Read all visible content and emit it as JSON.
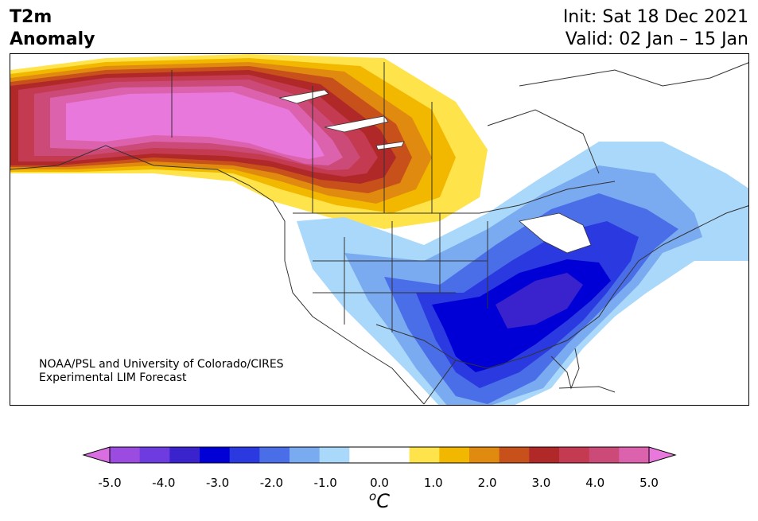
{
  "header": {
    "title_line1": "T2m",
    "title_line2": "Anomaly",
    "init": "Init: Sat 18 Dec 2021",
    "valid": "Valid: 02 Jan – 15 Jan"
  },
  "credit": {
    "line1": "NOAA/PSL and University of Colorado/CIRES",
    "line2": "Experimental LIM Forecast"
  },
  "colorbar": {
    "unit_base": "C",
    "unit_sup": "o",
    "ticks": [
      "-5.0",
      "-4.0",
      "-3.0",
      "-2.0",
      "-1.0",
      "0.0",
      "1.0",
      "2.0",
      "3.0",
      "4.0",
      "5.0"
    ],
    "colors": [
      "#9b4be0",
      "#6e3be0",
      "#3a22cc",
      "#0000d6",
      "#2a3ae0",
      "#4a6ee8",
      "#7aaaf0",
      "#aad8fa",
      "#ffffff",
      "#ffffff",
      "#ffe34a",
      "#f2b800",
      "#e08a10",
      "#c8501a",
      "#b02828",
      "#c43a50",
      "#cc4a78",
      "#dc62ae"
    ],
    "under_color": "#d86ee0",
    "over_color": "#e878dc"
  },
  "map": {
    "warm_colors": [
      "#ffe34a",
      "#f2b800",
      "#e08a10",
      "#c8501a",
      "#b02828",
      "#c43a50",
      "#cc4a78",
      "#dc62ae",
      "#e878dc"
    ],
    "cold_colors": [
      "#aad8fa",
      "#7aaaf0",
      "#4a6ee8",
      "#2a3ae0",
      "#0000d6",
      "#3a22cc"
    ]
  }
}
